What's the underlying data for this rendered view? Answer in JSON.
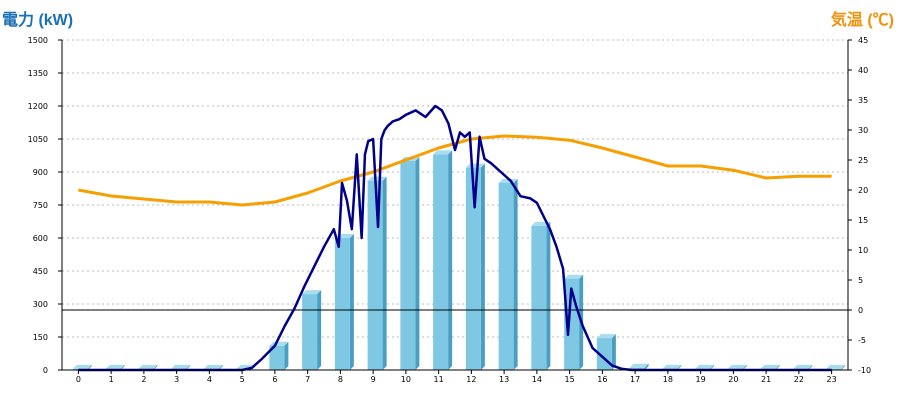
{
  "colors": {
    "left_axis_title": "#1a6fb5",
    "right_axis_title": "#f0920a",
    "power_line": "#00008b",
    "temp_line": "#f5a000",
    "bar_face": "#7ec8e3",
    "bar_side": "#4a9ec2",
    "bar_top": "#a8dcef",
    "grid": "#bbbbbb",
    "axis": "#000000"
  },
  "chart_data": {
    "type": "bar",
    "left_axis": {
      "title": "電力 (kW)",
      "ylim": [
        0,
        1500
      ],
      "ticks": [
        0,
        150,
        300,
        450,
        600,
        750,
        900,
        1050,
        1200,
        1350,
        1500
      ]
    },
    "right_axis": {
      "title": "気温 (℃)",
      "ylim": [
        -10,
        45
      ],
      "ticks": [
        -10,
        -5,
        0,
        5,
        10,
        15,
        20,
        25,
        30,
        35,
        40,
        45
      ]
    },
    "categories": [
      "0",
      "1",
      "2",
      "3",
      "4",
      "5",
      "6",
      "7",
      "8",
      "9",
      "10",
      "11",
      "12",
      "13",
      "14",
      "15",
      "16",
      "17",
      "18",
      "19",
      "20",
      "21",
      "22",
      "23"
    ],
    "grid": true,
    "series": [
      {
        "kind": "bar",
        "axis": "left",
        "values": [
          5,
          5,
          5,
          5,
          5,
          5,
          110,
          345,
          600,
          860,
          950,
          980,
          920,
          850,
          655,
          415,
          145,
          10,
          5,
          5,
          5,
          5,
          5,
          5
        ]
      },
      {
        "kind": "line",
        "axis": "left",
        "x": [
          0,
          5.0,
          5.3,
          5.6,
          6.0,
          6.3,
          6.6,
          6.9,
          7.2,
          7.5,
          7.8,
          7.95,
          8.05,
          8.2,
          8.35,
          8.5,
          8.65,
          8.75,
          8.85,
          9.0,
          9.15,
          9.25,
          9.35,
          9.45,
          9.6,
          9.8,
          10.0,
          10.3,
          10.6,
          10.9,
          11.1,
          11.3,
          11.5,
          11.65,
          11.8,
          11.95,
          12.1,
          12.25,
          12.4,
          12.6,
          12.9,
          13.2,
          13.5,
          13.8,
          14.0,
          14.2,
          14.4,
          14.6,
          14.8,
          14.95,
          15.05,
          15.2,
          15.4,
          15.7,
          16.0,
          16.3,
          16.6,
          16.9,
          17.1,
          18,
          19,
          20,
          21,
          22,
          23
        ],
        "values": [
          0,
          0,
          10,
          50,
          110,
          200,
          280,
          380,
          470,
          560,
          640,
          560,
          850,
          770,
          640,
          980,
          600,
          980,
          1040,
          1050,
          650,
          1050,
          1090,
          1110,
          1130,
          1140,
          1160,
          1180,
          1150,
          1200,
          1180,
          1120,
          1000,
          1080,
          1060,
          1080,
          740,
          1060,
          960,
          940,
          900,
          860,
          790,
          780,
          760,
          700,
          640,
          560,
          460,
          160,
          370,
          290,
          200,
          100,
          60,
          20,
          5,
          0,
          0,
          0,
          0,
          0,
          0,
          0,
          0
        ]
      },
      {
        "kind": "line",
        "axis": "right",
        "values": [
          20,
          19,
          18.5,
          18,
          18,
          17.5,
          18,
          19.5,
          21.5,
          23,
          25,
          27,
          28.5,
          29,
          28.8,
          28.3,
          27,
          25.5,
          24,
          24,
          23.3,
          22,
          22.3,
          22.3
        ]
      }
    ],
    "reference_line": {
      "axis": "right",
      "value": 0
    }
  }
}
